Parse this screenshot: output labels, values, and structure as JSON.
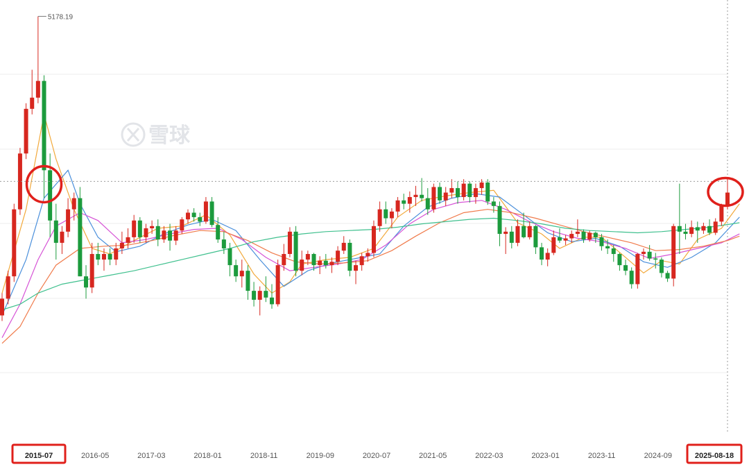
{
  "watermark": {
    "text": "雪球",
    "icon": "xueqiu-logo-icon"
  },
  "chart_data": {
    "type": "candlestick",
    "x_tick_labels": [
      "2015-07",
      "2016-05",
      "2017-03",
      "2018-01",
      "2018-11",
      "2019-09",
      "2020-07",
      "2021-05",
      "2022-03",
      "2023-01",
      "2023-11",
      "2024-09",
      "2025-08-18"
    ],
    "highlighted_ticks": [
      "2015-07",
      "2025-08-18"
    ],
    "peak": {
      "label": "5178.19",
      "value": 5178.19
    },
    "ylim": [
      2000,
      5250
    ],
    "grid": "horizontal",
    "reference_line_value": 3700,
    "colors": {
      "up": "#d7271f",
      "down": "#1c9b3d",
      "ma5": "#f2a93b",
      "ma10": "#4a8fdb",
      "ma20": "#d653d6",
      "ma30": "#f07a4a",
      "ma60": "#3fc08e",
      "highlight": "#e0201b"
    },
    "candles": [
      [
        2500,
        2700,
        2450,
        2650
      ],
      [
        2650,
        2900,
        2600,
        2850
      ],
      [
        2850,
        3500,
        2800,
        3450
      ],
      [
        3450,
        4000,
        3400,
        3950
      ],
      [
        3950,
        4400,
        3900,
        4350
      ],
      [
        4350,
        4700,
        4300,
        4450
      ],
      [
        4450,
        5178.19,
        4400,
        4600
      ],
      [
        4600,
        4650,
        3550,
        3800
      ],
      [
        3800,
        3950,
        3200,
        3350
      ],
      [
        3350,
        3500,
        3000,
        3150
      ],
      [
        3150,
        3300,
        3050,
        3250
      ],
      [
        3250,
        3550,
        3200,
        3450
      ],
      [
        3450,
        3600,
        3350,
        3550
      ],
      [
        3550,
        3650,
        2850,
        2850
      ],
      [
        2850,
        2950,
        2650,
        2750
      ],
      [
        2750,
        3150,
        2700,
        3050
      ],
      [
        3050,
        3150,
        2950,
        3000
      ],
      [
        3000,
        3100,
        2900,
        3050
      ],
      [
        3050,
        3100,
        2950,
        3000
      ],
      [
        3000,
        3150,
        2950,
        3100
      ],
      [
        3100,
        3250,
        3050,
        3150
      ],
      [
        3150,
        3280,
        3100,
        3200
      ],
      [
        3200,
        3400,
        3150,
        3350
      ],
      [
        3350,
        3380,
        3150,
        3200
      ],
      [
        3200,
        3320,
        3150,
        3280
      ],
      [
        3280,
        3350,
        3230,
        3300
      ],
      [
        3300,
        3360,
        3120,
        3180
      ],
      [
        3180,
        3300,
        3150,
        3260
      ],
      [
        3260,
        3320,
        3080,
        3170
      ],
      [
        3170,
        3300,
        3130,
        3260
      ],
      [
        3260,
        3380,
        3230,
        3360
      ],
      [
        3360,
        3450,
        3320,
        3420
      ],
      [
        3420,
        3460,
        3340,
        3380
      ],
      [
        3380,
        3420,
        3300,
        3340
      ],
      [
        3340,
        3560,
        3320,
        3520
      ],
      [
        3520,
        3560,
        3290,
        3310
      ],
      [
        3310,
        3380,
        3150,
        3180
      ],
      [
        3180,
        3250,
        3050,
        3100
      ],
      [
        3100,
        3150,
        2850,
        2950
      ],
      [
        2950,
        3000,
        2800,
        2850
      ],
      [
        2850,
        3000,
        2750,
        2900
      ],
      [
        2900,
        2950,
        2640,
        2720
      ],
      [
        2720,
        2800,
        2580,
        2640
      ],
      [
        2640,
        2760,
        2500,
        2720
      ],
      [
        2720,
        2850,
        2620,
        2660
      ],
      [
        2660,
        2780,
        2560,
        2600
      ],
      [
        2600,
        3000,
        2580,
        2950
      ],
      [
        2950,
        3140,
        2900,
        3050
      ],
      [
        3050,
        3290,
        3020,
        3250
      ],
      [
        3250,
        3300,
        2850,
        2900
      ],
      [
        2900,
        3080,
        2860,
        3000
      ],
      [
        3000,
        3080,
        2950,
        3050
      ],
      [
        3050,
        3060,
        2900,
        2950
      ],
      [
        2950,
        3030,
        2870,
        2990
      ],
      [
        2990,
        3050,
        2920,
        2950
      ],
      [
        2950,
        3020,
        2880,
        2980
      ],
      [
        2980,
        3120,
        2950,
        3080
      ],
      [
        3080,
        3210,
        3050,
        3150
      ],
      [
        3150,
        3180,
        2850,
        2900
      ],
      [
        2900,
        2990,
        2780,
        2950
      ],
      [
        2950,
        3060,
        2900,
        3030
      ],
      [
        3030,
        3100,
        2980,
        3060
      ],
      [
        3060,
        3350,
        3020,
        3300
      ],
      [
        3300,
        3520,
        3250,
        3450
      ],
      [
        3450,
        3520,
        3320,
        3370
      ],
      [
        3370,
        3460,
        3280,
        3430
      ],
      [
        3430,
        3560,
        3380,
        3530
      ],
      [
        3530,
        3590,
        3450,
        3500
      ],
      [
        3500,
        3610,
        3420,
        3560
      ],
      [
        3560,
        3660,
        3480,
        3580
      ],
      [
        3580,
        3730,
        3520,
        3550
      ],
      [
        3550,
        3640,
        3400,
        3450
      ],
      [
        3450,
        3680,
        3420,
        3650
      ],
      [
        3650,
        3690,
        3500,
        3530
      ],
      [
        3530,
        3650,
        3480,
        3600
      ],
      [
        3600,
        3720,
        3550,
        3640
      ],
      [
        3640,
        3700,
        3500,
        3560
      ],
      [
        3560,
        3720,
        3530,
        3680
      ],
      [
        3680,
        3700,
        3510,
        3560
      ],
      [
        3560,
        3680,
        3500,
        3640
      ],
      [
        3640,
        3720,
        3580,
        3690
      ],
      [
        3690,
        3720,
        3490,
        3520
      ],
      [
        3520,
        3560,
        3420,
        3480
      ],
      [
        3480,
        3520,
        3120,
        3230
      ],
      [
        3230,
        3290,
        3050,
        3250
      ],
      [
        3250,
        3300,
        3100,
        3150
      ],
      [
        3150,
        3360,
        3120,
        3300
      ],
      [
        3300,
        3420,
        3190,
        3200
      ],
      [
        3200,
        3340,
        3180,
        3300
      ],
      [
        3300,
        3310,
        3050,
        3110
      ],
      [
        3110,
        3150,
        2950,
        3000
      ],
      [
        3000,
        3100,
        2940,
        3060
      ],
      [
        3060,
        3260,
        3040,
        3200
      ],
      [
        3200,
        3280,
        3150,
        3170
      ],
      [
        3170,
        3220,
        3130,
        3190
      ],
      [
        3190,
        3260,
        3150,
        3230
      ],
      [
        3230,
        3360,
        3200,
        3250
      ],
      [
        3250,
        3270,
        3150,
        3180
      ],
      [
        3180,
        3260,
        3160,
        3240
      ],
      [
        3240,
        3250,
        3150,
        3200
      ],
      [
        3200,
        3230,
        3080,
        3120
      ],
      [
        3120,
        3180,
        3050,
        3100
      ],
      [
        3100,
        3130,
        2980,
        3050
      ],
      [
        3050,
        3060,
        2900,
        2950
      ],
      [
        2950,
        3000,
        2860,
        2900
      ],
      [
        2900,
        2930,
        2740,
        2780
      ],
      [
        2780,
        3060,
        2740,
        3050
      ],
      [
        3050,
        3100,
        3000,
        3070
      ],
      [
        3070,
        3130,
        2990,
        3010
      ],
      [
        3010,
        3060,
        2920,
        3000
      ],
      [
        3000,
        3020,
        2840,
        2880
      ],
      [
        2880,
        2900,
        2800,
        2830
      ],
      [
        2830,
        3320,
        2760,
        3300
      ],
      [
        3300,
        3680,
        3050,
        3250
      ],
      [
        3250,
        3320,
        3180,
        3230
      ],
      [
        3230,
        3350,
        3200,
        3290
      ],
      [
        3290,
        3340,
        3150,
        3260
      ],
      [
        3260,
        3330,
        3230,
        3300
      ],
      [
        3300,
        3360,
        3220,
        3240
      ],
      [
        3240,
        3370,
        3220,
        3340
      ],
      [
        3340,
        3500,
        3300,
        3480
      ],
      [
        3480,
        3720,
        3450,
        3600
      ]
    ],
    "ma_series": {
      "ma5": [
        [
          0,
          2700
        ],
        [
          4,
          3450
        ],
        [
          7,
          4300
        ],
        [
          9,
          3900
        ],
        [
          12,
          3450
        ],
        [
          15,
          3100
        ],
        [
          18,
          3050
        ],
        [
          22,
          3170
        ],
        [
          26,
          3280
        ],
        [
          30,
          3300
        ],
        [
          34,
          3400
        ],
        [
          38,
          3220
        ],
        [
          42,
          2870
        ],
        [
          45,
          2700
        ],
        [
          48,
          2800
        ],
        [
          50,
          2960
        ],
        [
          54,
          3000
        ],
        [
          58,
          3020
        ],
        [
          62,
          3100
        ],
        [
          66,
          3380
        ],
        [
          70,
          3530
        ],
        [
          74,
          3570
        ],
        [
          78,
          3600
        ],
        [
          82,
          3620
        ],
        [
          86,
          3330
        ],
        [
          90,
          3230
        ],
        [
          93,
          3100
        ],
        [
          97,
          3200
        ],
        [
          100,
          3200
        ],
        [
          104,
          3020
        ],
        [
          107,
          2880
        ],
        [
          110,
          2990
        ],
        [
          113,
          2960
        ],
        [
          116,
          3180
        ],
        [
          120,
          3280
        ],
        [
          123,
          3500
        ]
      ],
      "ma10": [
        [
          0,
          2500
        ],
        [
          4,
          3000
        ],
        [
          7,
          3550
        ],
        [
          11,
          3800
        ],
        [
          13,
          3500
        ],
        [
          16,
          3200
        ],
        [
          19,
          3070
        ],
        [
          23,
          3120
        ],
        [
          27,
          3230
        ],
        [
          31,
          3310
        ],
        [
          35,
          3360
        ],
        [
          39,
          3260
        ],
        [
          43,
          3000
        ],
        [
          47,
          2760
        ],
        [
          51,
          2900
        ],
        [
          55,
          2970
        ],
        [
          59,
          3010
        ],
        [
          63,
          3050
        ],
        [
          67,
          3300
        ],
        [
          71,
          3470
        ],
        [
          75,
          3550
        ],
        [
          79,
          3590
        ],
        [
          83,
          3560
        ],
        [
          87,
          3400
        ],
        [
          91,
          3240
        ],
        [
          95,
          3160
        ],
        [
          99,
          3190
        ],
        [
          103,
          3120
        ],
        [
          107,
          2980
        ],
        [
          111,
          2930
        ],
        [
          115,
          3020
        ],
        [
          119,
          3150
        ],
        [
          123,
          3380
        ]
      ],
      "ma20": [
        [
          0,
          2300
        ],
        [
          3,
          2600
        ],
        [
          6,
          3000
        ],
        [
          9,
          3300
        ],
        [
          13,
          3420
        ],
        [
          16,
          3350
        ],
        [
          20,
          3150
        ],
        [
          24,
          3180
        ],
        [
          28,
          3230
        ],
        [
          32,
          3270
        ],
        [
          36,
          3280
        ],
        [
          40,
          3180
        ],
        [
          44,
          3020
        ],
        [
          48,
          2900
        ],
        [
          52,
          2930
        ],
        [
          56,
          2960
        ],
        [
          60,
          3000
        ],
        [
          64,
          3130
        ],
        [
          68,
          3320
        ],
        [
          72,
          3450
        ],
        [
          76,
          3510
        ],
        [
          80,
          3530
        ],
        [
          84,
          3450
        ],
        [
          88,
          3340
        ],
        [
          92,
          3250
        ],
        [
          96,
          3190
        ],
        [
          100,
          3160
        ],
        [
          104,
          3100
        ],
        [
          108,
          3010
        ],
        [
          112,
          3050
        ],
        [
          116,
          3100
        ],
        [
          120,
          3150
        ],
        [
          123,
          3230
        ]
      ],
      "ma30": [
        [
          0,
          2250
        ],
        [
          3,
          2400
        ],
        [
          6,
          2700
        ],
        [
          9,
          2950
        ],
        [
          13,
          3100
        ],
        [
          17,
          3120
        ],
        [
          21,
          3130
        ],
        [
          25,
          3170
        ],
        [
          29,
          3220
        ],
        [
          33,
          3260
        ],
        [
          37,
          3250
        ],
        [
          41,
          3170
        ],
        [
          45,
          3060
        ],
        [
          49,
          2980
        ],
        [
          53,
          2960
        ],
        [
          57,
          2970
        ],
        [
          61,
          2990
        ],
        [
          65,
          3080
        ],
        [
          69,
          3210
        ],
        [
          73,
          3330
        ],
        [
          77,
          3420
        ],
        [
          81,
          3450
        ],
        [
          85,
          3420
        ],
        [
          89,
          3370
        ],
        [
          93,
          3310
        ],
        [
          97,
          3250
        ],
        [
          101,
          3200
        ],
        [
          105,
          3150
        ],
        [
          109,
          3080
        ],
        [
          113,
          3090
        ],
        [
          117,
          3120
        ],
        [
          121,
          3170
        ],
        [
          123,
          3210
        ]
      ],
      "ma60": [
        [
          0,
          2550
        ],
        [
          3,
          2600
        ],
        [
          6,
          2700
        ],
        [
          10,
          2780
        ],
        [
          14,
          2820
        ],
        [
          18,
          2860
        ],
        [
          22,
          2900
        ],
        [
          26,
          2950
        ],
        [
          30,
          3000
        ],
        [
          34,
          3050
        ],
        [
          38,
          3100
        ],
        [
          42,
          3160
        ],
        [
          46,
          3200
        ],
        [
          50,
          3230
        ],
        [
          54,
          3250
        ],
        [
          58,
          3260
        ],
        [
          62,
          3270
        ],
        [
          66,
          3290
        ],
        [
          70,
          3320
        ],
        [
          74,
          3340
        ],
        [
          78,
          3360
        ],
        [
          82,
          3370
        ],
        [
          86,
          3350
        ],
        [
          90,
          3320
        ],
        [
          94,
          3280
        ],
        [
          98,
          3260
        ],
        [
          102,
          3250
        ],
        [
          106,
          3240
        ],
        [
          110,
          3250
        ],
        [
          114,
          3270
        ],
        [
          118,
          3290
        ],
        [
          123,
          3330
        ]
      ]
    }
  }
}
